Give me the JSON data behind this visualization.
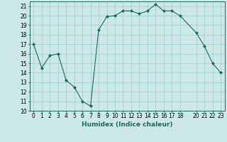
{
  "x": [
    0,
    1,
    2,
    3,
    4,
    5,
    6,
    7,
    8,
    9,
    10,
    11,
    12,
    13,
    14,
    15,
    16,
    17,
    18,
    20,
    21,
    22,
    23
  ],
  "y": [
    17.0,
    14.5,
    15.8,
    16.0,
    13.2,
    12.5,
    11.0,
    10.5,
    18.5,
    19.9,
    20.0,
    20.5,
    20.5,
    20.2,
    20.5,
    21.2,
    20.5,
    20.5,
    20.0,
    18.2,
    16.8,
    15.0,
    14.0
  ],
  "line_color": "#1a6b5a",
  "marker": "D",
  "marker_size": 2.0,
  "bg_color": "#cce8e8",
  "grid_color": "#99cccc",
  "xlabel": "Humidex (Indice chaleur)",
  "ylim": [
    10,
    21.5
  ],
  "xlim": [
    -0.5,
    23.5
  ],
  "yticks": [
    10,
    11,
    12,
    13,
    14,
    15,
    16,
    17,
    18,
    19,
    20,
    21
  ],
  "xticks": [
    0,
    1,
    2,
    3,
    4,
    5,
    6,
    7,
    8,
    9,
    10,
    11,
    12,
    13,
    14,
    15,
    16,
    17,
    18,
    20,
    21,
    22,
    23
  ],
  "tick_label_fontsize": 5.5,
  "xlabel_fontsize": 6.5
}
